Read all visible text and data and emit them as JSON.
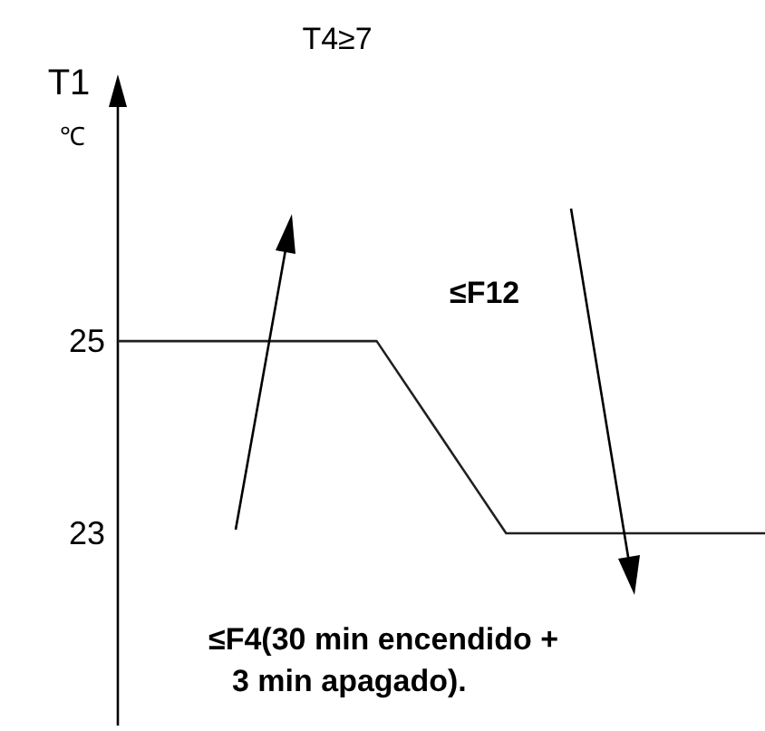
{
  "chart_data": {
    "type": "line",
    "ylabel": "T1 ℃",
    "categories": [
      null,
      null,
      null,
      null,
      null,
      null,
      null,
      null,
      null,
      null,
      null
    ],
    "series": [
      {
        "color": "#231f20",
        "values": [
          25,
          25,
          25,
          25,
          25,
          24,
          23,
          23,
          23,
          23,
          23
        ]
      }
    ],
    "ylim": [
      21,
      27.7
    ],
    "yticks": [
      23,
      25
    ],
    "grid": false,
    "line_style": "solid",
    "tick_labels": "y",
    "annotations": [
      "T4≥7",
      "≤F12",
      "≤F4(30 min encendido + 3 min apagado)."
    ]
  }
}
